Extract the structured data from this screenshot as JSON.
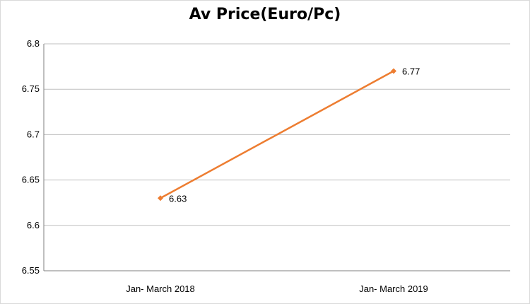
{
  "chart_data": {
    "type": "line",
    "title": "Av Price(Euro/Pc)",
    "xlabel": "",
    "ylabel": "",
    "categories": [
      "Jan- March 2018",
      "Jan- March 2019"
    ],
    "series": [
      {
        "values": [
          6.63,
          6.77
        ],
        "color": "#ed7d31",
        "data_labels": [
          "6.63",
          "6.77"
        ]
      }
    ],
    "ylim": [
      6.55,
      6.8
    ],
    "yticks": [
      6.55,
      6.6,
      6.65,
      6.7,
      6.75,
      6.8
    ],
    "ytick_labels": [
      "6.55",
      "6.6",
      "6.65",
      "6.7",
      "6.75",
      "6.8"
    ],
    "grid": true,
    "legend": "none",
    "gridline_color": "#bfbfbf",
    "axis_color": "#7f7f7f"
  }
}
